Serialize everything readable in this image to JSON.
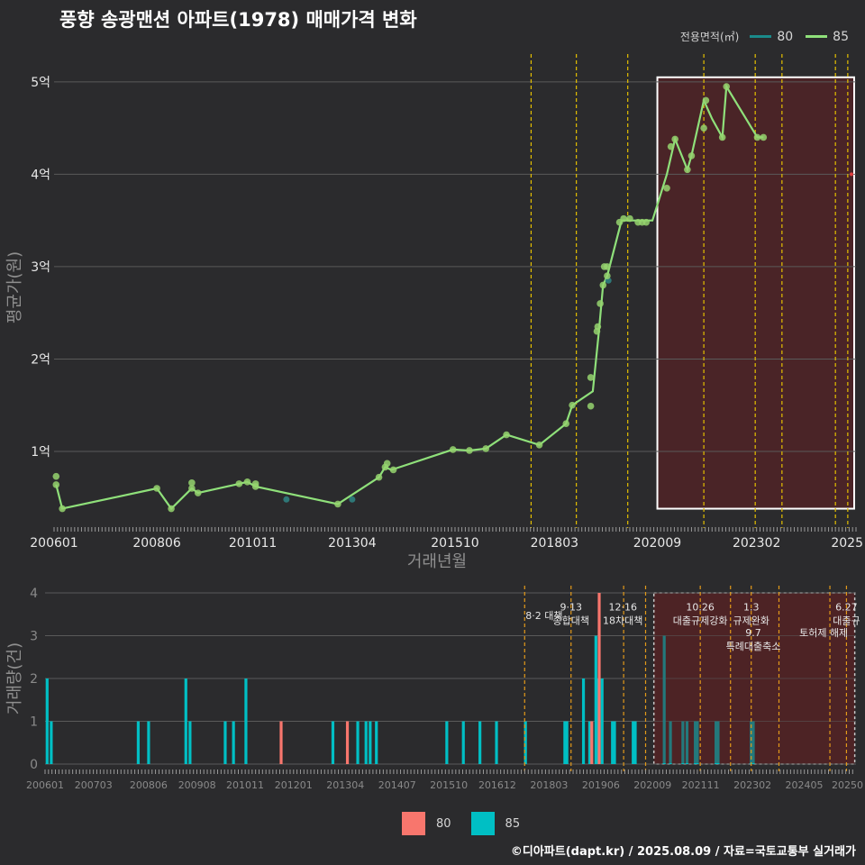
{
  "title": "풍향 송광맨션 아파트(1978) 매매가격 변화",
  "footer": "©디아파트(dapt.kr) / 2025.08.09 / 자료=국토교통부 실거래가",
  "colors": {
    "s80": "#f8766d",
    "s85": "#00bfc4",
    "line80": "#1a8a8a",
    "line85": "#8fe07a",
    "pt85": "#95d46f",
    "pt80": "#2f7f7f",
    "shade": "#4a2427",
    "vline": "#e5c000",
    "vline2": "#e39a1a"
  },
  "legend_top": {
    "title": "전용면적(㎡)",
    "items": [
      "80",
      "85"
    ]
  },
  "legend_bottom": {
    "items": [
      "80",
      "85"
    ]
  },
  "chart_data": [
    {
      "type": "line",
      "title": "풍향 송광맨션 아파트(1978) 매매가격 변화",
      "xlabel": "거래년월",
      "ylabel": "평균가(원)",
      "x_domain": [
        2006.0,
        2025.5
      ],
      "ylim": [
        0.2,
        5.35
      ],
      "ytick_values": [
        1,
        2,
        3,
        4,
        5
      ],
      "ytick_labels": [
        "1억",
        "2억",
        "3억",
        "4억",
        "5억"
      ],
      "xtick_values": [
        2006.0,
        2008.5,
        2010.833,
        2013.25,
        2015.75,
        2018.167,
        2020.667,
        2023.083,
        2025.5
      ],
      "xtick_labels": [
        "200601",
        "200806",
        "201011",
        "201304",
        "201510",
        "201803",
        "202009",
        "202302",
        "2025"
      ],
      "highlight_range": [
        2020.67,
        2025.5
      ],
      "policy_lines": [
        2017.6,
        2018.7,
        2019.95,
        2021.8,
        2023.05,
        2023.7,
        2025.0,
        2025.3
      ],
      "series": [
        {
          "name": "85",
          "line": [
            [
              2006.05,
              0.64
            ],
            [
              2006.2,
              0.38
            ],
            [
              2008.5,
              0.6
            ],
            [
              2008.85,
              0.38
            ],
            [
              2009.35,
              0.6
            ],
            [
              2009.5,
              0.55
            ],
            [
              2010.5,
              0.65
            ],
            [
              2010.7,
              0.67
            ],
            [
              2010.9,
              0.62
            ],
            [
              2012.9,
              0.43
            ],
            [
              2013.9,
              0.72
            ],
            [
              2014.05,
              0.83
            ],
            [
              2014.2,
              0.8
            ],
            [
              2015.7,
              1.02
            ],
            [
              2016.1,
              1.01
            ],
            [
              2016.5,
              1.03
            ],
            [
              2017.0,
              1.18
            ],
            [
              2017.8,
              1.07
            ],
            [
              2018.45,
              1.3
            ],
            [
              2018.6,
              1.5
            ],
            [
              2019.1,
              1.65
            ],
            [
              2019.25,
              2.3
            ],
            [
              2019.35,
              2.8
            ],
            [
              2019.45,
              2.9
            ],
            [
              2019.8,
              3.5
            ],
            [
              2020.0,
              3.5
            ],
            [
              2020.55,
              3.5
            ],
            [
              2020.9,
              4.0
            ],
            [
              2021.1,
              4.38
            ],
            [
              2021.4,
              4.05
            ],
            [
              2021.5,
              4.2
            ],
            [
              2021.8,
              4.8
            ],
            [
              2022.0,
              4.6
            ],
            [
              2022.25,
              4.4
            ],
            [
              2022.35,
              4.95
            ],
            [
              2023.1,
              4.4
            ],
            [
              2023.25,
              4.4
            ]
          ],
          "points": [
            [
              2006.05,
              0.73
            ],
            [
              2006.05,
              0.64
            ],
            [
              2006.2,
              0.38
            ],
            [
              2008.5,
              0.6
            ],
            [
              2008.85,
              0.38
            ],
            [
              2009.35,
              0.66
            ],
            [
              2009.35,
              0.6
            ],
            [
              2009.5,
              0.55
            ],
            [
              2010.5,
              0.65
            ],
            [
              2010.7,
              0.67
            ],
            [
              2010.9,
              0.62
            ],
            [
              2010.9,
              0.65
            ],
            [
              2012.9,
              0.43
            ],
            [
              2013.9,
              0.72
            ],
            [
              2014.05,
              0.83
            ],
            [
              2014.1,
              0.87
            ],
            [
              2014.25,
              0.8
            ],
            [
              2015.7,
              1.02
            ],
            [
              2016.1,
              1.01
            ],
            [
              2016.5,
              1.03
            ],
            [
              2017.0,
              1.18
            ],
            [
              2017.8,
              1.07
            ],
            [
              2018.45,
              1.3
            ],
            [
              2018.6,
              1.5
            ],
            [
              2019.05,
              1.8
            ],
            [
              2019.05,
              1.49
            ],
            [
              2019.2,
              2.3
            ],
            [
              2019.22,
              2.35
            ],
            [
              2019.28,
              2.6
            ],
            [
              2019.35,
              2.8
            ],
            [
              2019.38,
              3.0
            ],
            [
              2019.45,
              2.9
            ],
            [
              2019.45,
              3.0
            ],
            [
              2019.75,
              3.48
            ],
            [
              2019.85,
              3.52
            ],
            [
              2020.0,
              3.52
            ],
            [
              2020.2,
              3.48
            ],
            [
              2020.3,
              3.48
            ],
            [
              2020.4,
              3.48
            ],
            [
              2020.9,
              3.85
            ],
            [
              2021.0,
              4.3
            ],
            [
              2021.1,
              4.38
            ],
            [
              2021.4,
              4.05
            ],
            [
              2021.5,
              4.2
            ],
            [
              2021.8,
              4.5
            ],
            [
              2021.85,
              4.8
            ],
            [
              2022.25,
              4.4
            ],
            [
              2022.35,
              4.95
            ],
            [
              2023.1,
              4.4
            ],
            [
              2023.25,
              4.4
            ]
          ]
        },
        {
          "name": "80",
          "line": [],
          "points": [
            [
              2011.65,
              0.48
            ],
            [
              2013.25,
              0.48
            ],
            [
              2019.48,
              2.85
            ]
          ]
        }
      ]
    },
    {
      "type": "bar",
      "ylabel": "거래량(건)",
      "x_domain": [
        2006.0,
        2025.58
      ],
      "ylim": [
        0,
        4
      ],
      "ytick_values": [
        0,
        1,
        2,
        3,
        4
      ],
      "xtick_values": [
        2006.0,
        2007.17,
        2008.5,
        2009.67,
        2010.83,
        2012.0,
        2013.25,
        2014.5,
        2015.75,
        2016.92,
        2018.17,
        2019.42,
        2020.67,
        2021.83,
        2023.08,
        2024.33,
        2025.5
      ],
      "xtick_labels": [
        "200601",
        "200703",
        "200806",
        "200908",
        "201011",
        "201201",
        "201304",
        "201407",
        "201510",
        "201612",
        "201803",
        "201906",
        "202009",
        "202111",
        "202302",
        "202405",
        "20250"
      ],
      "highlight_range": [
        2020.7,
        2025.55
      ],
      "policy_lines": [
        2017.58,
        2018.7,
        2019.97,
        2020.5,
        2021.82,
        2022.55,
        2023.05,
        2023.72,
        2024.95,
        2025.35
      ],
      "annotations": [
        {
          "x": 2018.05,
          "lines": [
            "8·2 대책"
          ],
          "y": 3.6
        },
        {
          "x": 2018.7,
          "lines": [
            "9·13",
            "종합대책"
          ],
          "y": 3.8
        },
        {
          "x": 2019.95,
          "lines": [
            "12·16",
            "18차대책"
          ],
          "y": 3.8
        },
        {
          "x": 2021.82,
          "lines": [
            "10.26",
            "대출규제강화"
          ],
          "y": 3.8
        },
        {
          "x": 2023.05,
          "lines": [
            "1.3",
            "규제완화"
          ],
          "y": 3.8
        },
        {
          "x": 2023.1,
          "lines": [
            "9.7",
            "특례대출축소"
          ],
          "y": 3.2
        },
        {
          "x": 2024.8,
          "lines": [
            "토허제 해제"
          ],
          "y": 3.2
        },
        {
          "x": 2025.35,
          "lines": [
            "6.27",
            "대출규"
          ],
          "y": 3.8
        }
      ],
      "series": [
        {
          "name": "85",
          "bars": [
            [
              2006.05,
              2
            ],
            [
              2006.15,
              1
            ],
            [
              2008.25,
              1
            ],
            [
              2008.5,
              1
            ],
            [
              2009.4,
              2
            ],
            [
              2009.5,
              1
            ],
            [
              2010.35,
              1
            ],
            [
              2010.55,
              1
            ],
            [
              2010.85,
              2
            ],
            [
              2012.95,
              1
            ],
            [
              2013.55,
              1
            ],
            [
              2013.75,
              1
            ],
            [
              2013.85,
              1
            ],
            [
              2014.0,
              1
            ],
            [
              2015.7,
              1
            ],
            [
              2016.1,
              1
            ],
            [
              2016.5,
              1
            ],
            [
              2016.9,
              1
            ],
            [
              2017.6,
              1
            ],
            [
              2018.55,
              1
            ],
            [
              2018.6,
              1
            ],
            [
              2019.0,
              2
            ],
            [
              2019.15,
              1
            ],
            [
              2019.2,
              1
            ],
            [
              2019.3,
              3
            ],
            [
              2019.35,
              2
            ],
            [
              2019.45,
              2
            ],
            [
              2019.7,
              1
            ],
            [
              2019.75,
              1
            ],
            [
              2020.2,
              1
            ],
            [
              2020.25,
              1
            ],
            [
              2020.95,
              3
            ],
            [
              2021.1,
              1
            ],
            [
              2021.4,
              1
            ],
            [
              2021.5,
              1
            ],
            [
              2021.7,
              1
            ],
            [
              2021.75,
              1
            ],
            [
              2022.2,
              1
            ],
            [
              2022.25,
              1
            ],
            [
              2023.05,
              1
            ],
            [
              2023.1,
              1
            ]
          ]
        },
        {
          "name": "80",
          "bars": [
            [
              2011.7,
              1
            ],
            [
              2013.3,
              1
            ],
            [
              2019.2,
              1
            ],
            [
              2019.38,
              4
            ]
          ]
        }
      ]
    }
  ]
}
